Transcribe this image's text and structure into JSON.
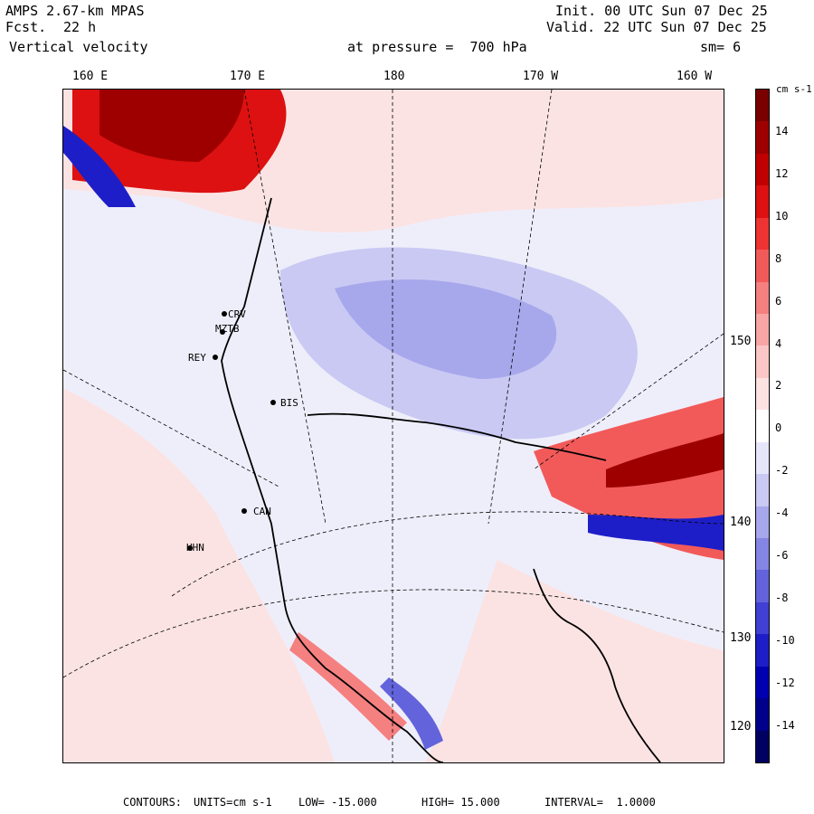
{
  "header": {
    "model": "AMPS 2.67-km MPAS",
    "fcst_label": "Fcst.",
    "fcst_value": "22 h",
    "field": "Vertical velocity",
    "init": "Init. 00 UTC Sun 07 Dec 25",
    "valid": "Valid. 22 UTC Sun 07 Dec 25",
    "level": "at pressure =  700 hPa",
    "smooth": "sm= 6"
  },
  "longitudes": [
    "160 E",
    "170 E",
    "180",
    "170 W",
    "160 W"
  ],
  "latitudes": [
    "150 W",
    "140 W",
    "130 W",
    "120 W"
  ],
  "stations": [
    "CRV",
    "MZTB",
    "REY",
    "BIS",
    "CAN",
    "HHN"
  ],
  "colorbar": {
    "unit": "cm s-1",
    "ticks": [
      "14",
      "12",
      "10",
      "8",
      "6",
      "4",
      "2",
      "0",
      "-2",
      "-4",
      "-6",
      "-8",
      "-10",
      "-12",
      "-14"
    ],
    "colors": [
      "#7a0000",
      "#9e0000",
      "#c00000",
      "#dd1111",
      "#ee3333",
      "#f25a5a",
      "#f58080",
      "#f8a5a5",
      "#fbc6c6",
      "#fde2e2",
      "#ffffff",
      "#e6e6fb",
      "#c9c9f3",
      "#a7a7ec",
      "#8585e4",
      "#6363dc",
      "#4040d4",
      "#1e1ec8",
      "#0000b0",
      "#00008a",
      "#000060"
    ]
  },
  "footer": {
    "contours": "CONTOURS:",
    "units": "UNITS=cm s-1",
    "low": "LOW= -15.000",
    "high": "HIGH= 15.000",
    "interval": "INTERVAL=  1.0000"
  }
}
